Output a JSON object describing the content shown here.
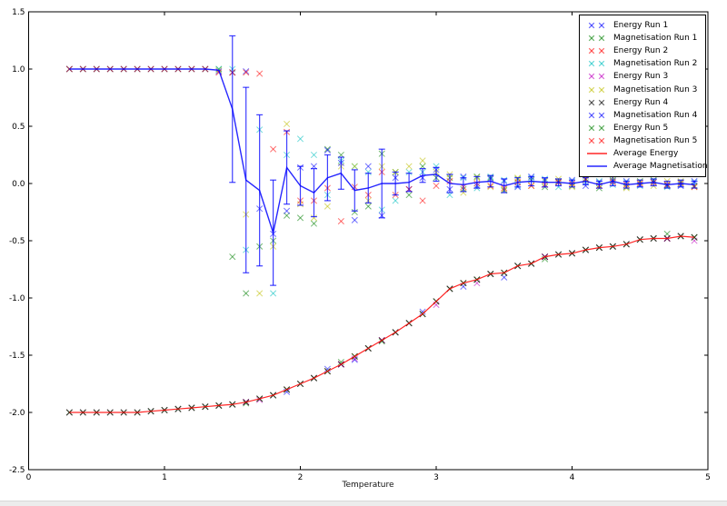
{
  "figure": {
    "background": "#ffffff",
    "axes_edge_color": "#000000",
    "errorbar_color": "#0000ff",
    "scrollbar_color": "#ececec"
  },
  "chart_data": {
    "type": "scatter",
    "title": "",
    "xlabel": "Temperature",
    "ylabel": "",
    "xlim": [
      0,
      5
    ],
    "ylim": [
      -2.5,
      1.5
    ],
    "xticks": [
      "0",
      "1",
      "2",
      "3",
      "4",
      "5"
    ],
    "yticks": [
      "1.5",
      "1.0",
      "0.5",
      "0.0",
      "-0.5",
      "-1.0",
      "-1.5",
      "-2.0",
      "-2.5"
    ],
    "grid": false,
    "legend_position": "upper right",
    "x": [
      0.3,
      0.4,
      0.5,
      0.6,
      0.7,
      0.8,
      0.9,
      1.0,
      1.1,
      1.2,
      1.3,
      1.4,
      1.5,
      1.6,
      1.7,
      1.8,
      1.9,
      2.0,
      2.1,
      2.2,
      2.3,
      2.4,
      2.5,
      2.6,
      2.7,
      2.8,
      2.9,
      3.0,
      3.1,
      3.2,
      3.3,
      3.4,
      3.5,
      3.6,
      3.7,
      3.8,
      3.9,
      4.0,
      4.1,
      4.2,
      4.3,
      4.4,
      4.5,
      4.6,
      4.7,
      4.8,
      4.9
    ],
    "series": [
      {
        "name": "Energy Run 1",
        "style": "scatter",
        "marker": "x",
        "color": "#0000ff",
        "values": [
          -2.0,
          -2.0,
          -2.0,
          -2.0,
          -2.0,
          -2.0,
          -1.99,
          -1.98,
          -1.97,
          -1.96,
          -1.95,
          -1.94,
          -1.93,
          -1.91,
          -1.88,
          -1.85,
          -1.82,
          -1.75,
          -1.7,
          -1.62,
          -1.58,
          -1.54,
          -1.44,
          -1.37,
          -1.3,
          -1.22,
          -1.12,
          -1.03,
          -0.92,
          -0.9,
          -0.84,
          -0.79,
          -0.82,
          -0.72,
          -0.7,
          -0.64,
          -0.62,
          -0.61,
          -0.58,
          -0.56,
          -0.55,
          -0.53,
          -0.49,
          -0.48,
          -0.48,
          -0.46,
          -0.47
        ]
      },
      {
        "name": "Magnetisation Run 1",
        "style": "scatter",
        "marker": "x",
        "color": "#007f00",
        "values": [
          1.0,
          1.0,
          1.0,
          1.0,
          1.0,
          1.0,
          1.0,
          1.0,
          1.0,
          1.0,
          1.0,
          1.0,
          -0.64,
          -0.96,
          -0.55,
          -0.5,
          -0.28,
          -0.3,
          -0.35,
          0.3,
          0.25,
          -0.25,
          -0.2,
          0.26,
          0.1,
          -0.1,
          0.15,
          0.05,
          0.05,
          -0.05,
          0.06,
          0.05,
          -0.06,
          0.04,
          0.03,
          -0.03,
          0.02,
          -0.02,
          0.04,
          -0.04,
          0.03,
          -0.03,
          0.02,
          0.03,
          -0.02,
          0.01,
          -0.02
        ]
      },
      {
        "name": "Energy Run 2",
        "style": "scatter",
        "marker": "x",
        "color": "#ff0000",
        "values": [
          -2.0,
          -2.0,
          -2.0,
          -2.0,
          -2.0,
          -2.0,
          -1.99,
          -1.98,
          -1.97,
          -1.96,
          -1.95,
          -1.94,
          -1.93,
          -1.91,
          -1.88,
          -1.85,
          -1.8,
          -1.75,
          -1.7,
          -1.64,
          -1.58,
          -1.51,
          -1.44,
          -1.37,
          -1.3,
          -1.22,
          -1.14,
          -1.03,
          -0.92,
          -0.87,
          -0.84,
          -0.79,
          -0.78,
          -0.72,
          -0.7,
          -0.64,
          -0.62,
          -0.61,
          -0.58,
          -0.56,
          -0.55,
          -0.53,
          -0.49,
          -0.48,
          -0.48,
          -0.46,
          -0.47
        ]
      },
      {
        "name": "Magnetisation Run 2",
        "style": "scatter",
        "marker": "x",
        "color": "#00bfbf",
        "values": [
          1.0,
          1.0,
          1.0,
          1.0,
          1.0,
          1.0,
          1.0,
          1.0,
          1.0,
          1.0,
          1.0,
          1.0,
          1.0,
          -0.58,
          0.47,
          -0.96,
          0.25,
          0.39,
          0.25,
          -0.1,
          0.2,
          0.15,
          0.1,
          -0.23,
          -0.15,
          0.1,
          0.1,
          0.15,
          -0.1,
          0.05,
          -0.04,
          0.06,
          0.03,
          -0.02,
          0.05,
          0.04,
          -0.03,
          0.02,
          0.01,
          0.02,
          -0.01,
          0.01,
          -0.02,
          0.02,
          -0.03,
          -0.01,
          0.01
        ]
      },
      {
        "name": "Energy Run 3",
        "style": "scatter",
        "marker": "x",
        "color": "#bf00bf",
        "values": [
          -2.0,
          -2.0,
          -2.0,
          -2.0,
          -2.0,
          -2.0,
          -1.99,
          -1.98,
          -1.97,
          -1.96,
          -1.95,
          -1.94,
          -1.93,
          -1.91,
          -1.89,
          -1.85,
          -1.8,
          -1.75,
          -1.7,
          -1.64,
          -1.58,
          -1.53,
          -1.44,
          -1.37,
          -1.3,
          -1.22,
          -1.14,
          -1.06,
          -0.92,
          -0.87,
          -0.87,
          -0.79,
          -0.78,
          -0.72,
          -0.7,
          -0.64,
          -0.62,
          -0.61,
          -0.58,
          -0.56,
          -0.55,
          -0.53,
          -0.49,
          -0.48,
          -0.48,
          -0.46,
          -0.5
        ]
      },
      {
        "name": "Magnetisation Run 3",
        "style": "scatter",
        "marker": "x",
        "color": "#bfbf00",
        "values": [
          1.0,
          1.0,
          1.0,
          1.0,
          1.0,
          1.0,
          1.0,
          1.0,
          1.0,
          1.0,
          1.0,
          0.99,
          0.97,
          -0.27,
          -0.96,
          -0.55,
          0.52,
          -0.18,
          -0.3,
          -0.2,
          0.15,
          0.15,
          -0.15,
          0.15,
          0.1,
          0.15,
          0.2,
          0.1,
          0.08,
          -0.08,
          0.05,
          -0.03,
          -0.05,
          0.05,
          -0.02,
          0.02,
          0.04,
          -0.03,
          0.03,
          -0.02,
          0.05,
          -0.04,
          0.01,
          -0.02,
          0.02,
          0.02,
          -0.03
        ]
      },
      {
        "name": "Energy Run 4",
        "style": "scatter",
        "marker": "x",
        "color": "#000000",
        "values": [
          -2.0,
          -2.0,
          -2.0,
          -2.0,
          -2.0,
          -2.0,
          -1.99,
          -1.98,
          -1.97,
          -1.96,
          -1.95,
          -1.94,
          -1.93,
          -1.91,
          -1.88,
          -1.85,
          -1.8,
          -1.75,
          -1.7,
          -1.64,
          -1.58,
          -1.51,
          -1.44,
          -1.37,
          -1.3,
          -1.22,
          -1.14,
          -1.03,
          -0.92,
          -0.87,
          -0.84,
          -0.79,
          -0.78,
          -0.72,
          -0.7,
          -0.64,
          -0.62,
          -0.61,
          -0.58,
          -0.56,
          -0.55,
          -0.53,
          -0.49,
          -0.48,
          -0.48,
          -0.46,
          -0.47
        ]
      },
      {
        "name": "Magnetisation Run 4",
        "style": "scatter",
        "marker": "x",
        "color": "#0000ff",
        "values": [
          1.0,
          1.0,
          1.0,
          1.0,
          1.0,
          1.0,
          1.0,
          1.0,
          1.0,
          1.0,
          1.0,
          0.98,
          0.97,
          0.98,
          -0.22,
          -0.44,
          -0.24,
          0.14,
          0.15,
          0.29,
          0.18,
          -0.32,
          0.15,
          -0.28,
          0.05,
          -0.05,
          0.05,
          0.12,
          -0.05,
          0.06,
          -0.02,
          0.04,
          0.02,
          -0.03,
          0.06,
          0.03,
          0.01,
          0.03,
          -0.02,
          0.01,
          0.02,
          0.02,
          -0.01,
          0.01,
          -0.01,
          -0.02,
          0.02
        ]
      },
      {
        "name": "Energy Run 5",
        "style": "scatter",
        "marker": "x",
        "color": "#007f00",
        "values": [
          -2.0,
          -2.0,
          -2.0,
          -2.0,
          -2.0,
          -2.0,
          -1.99,
          -1.98,
          -1.97,
          -1.96,
          -1.95,
          -1.94,
          -1.93,
          -1.92,
          -1.88,
          -1.85,
          -1.8,
          -1.75,
          -1.7,
          -1.64,
          -1.56,
          -1.51,
          -1.44,
          -1.38,
          -1.3,
          -1.22,
          -1.14,
          -1.03,
          -0.92,
          -0.87,
          -0.84,
          -0.79,
          -0.78,
          -0.72,
          -0.7,
          -0.66,
          -0.62,
          -0.61,
          -0.58,
          -0.56,
          -0.55,
          -0.53,
          -0.49,
          -0.48,
          -0.44,
          -0.46,
          -0.47
        ]
      },
      {
        "name": "Magnetisation Run 5",
        "style": "scatter",
        "marker": "x",
        "color": "#ff0000",
        "values": [
          1.0,
          1.0,
          1.0,
          1.0,
          1.0,
          1.0,
          1.0,
          1.0,
          1.0,
          1.0,
          1.0,
          0.97,
          0.97,
          0.97,
          0.96,
          0.3,
          0.45,
          -0.15,
          -0.15,
          -0.04,
          -0.33,
          -0.03,
          -0.1,
          0.1,
          -0.1,
          -0.05,
          -0.15,
          -0.02,
          0.02,
          -0.03,
          0.0,
          -0.02,
          -0.04,
          0.01,
          -0.02,
          -0.01,
          0.01,
          0.0,
          0.04,
          -0.02,
          0.01,
          -0.01,
          0.0,
          0.01,
          -0.01,
          0.0,
          -0.03
        ]
      },
      {
        "name": "Average Energy",
        "style": "line",
        "color": "#ff0000",
        "values": [
          -2.0,
          -2.0,
          -2.0,
          -2.0,
          -2.0,
          -2.0,
          -1.99,
          -1.98,
          -1.97,
          -1.96,
          -1.95,
          -1.94,
          -1.93,
          -1.91,
          -1.88,
          -1.85,
          -1.8,
          -1.75,
          -1.7,
          -1.64,
          -1.58,
          -1.51,
          -1.44,
          -1.37,
          -1.3,
          -1.22,
          -1.14,
          -1.03,
          -0.92,
          -0.87,
          -0.84,
          -0.79,
          -0.78,
          -0.72,
          -0.7,
          -0.64,
          -0.62,
          -0.61,
          -0.58,
          -0.56,
          -0.55,
          -0.53,
          -0.49,
          -0.48,
          -0.48,
          -0.46,
          -0.47
        ]
      },
      {
        "name": "Average Magnetisation",
        "style": "line",
        "color": "#0000ff",
        "values": [
          1.0,
          1.0,
          1.0,
          1.0,
          1.0,
          1.0,
          1.0,
          1.0,
          1.0,
          1.0,
          1.0,
          0.99,
          0.65,
          0.03,
          -0.06,
          -0.43,
          0.14,
          -0.02,
          -0.08,
          0.05,
          0.09,
          -0.06,
          -0.04,
          0.0,
          0.0,
          0.01,
          0.07,
          0.08,
          0.0,
          -0.01,
          0.01,
          0.02,
          -0.02,
          0.01,
          0.02,
          0.01,
          0.01,
          0.0,
          0.02,
          -0.01,
          0.02,
          -0.01,
          0.0,
          0.01,
          -0.01,
          0.0,
          -0.01
        ],
        "yerr": [
          0,
          0,
          0,
          0,
          0,
          0,
          0,
          0,
          0,
          0,
          0,
          0,
          0.64,
          0.81,
          0.66,
          0.46,
          0.32,
          0.17,
          0.21,
          0.2,
          0.14,
          0.18,
          0.13,
          0.3,
          0.1,
          0.08,
          0.06,
          0.06,
          0.08,
          0.06,
          0.05,
          0.05,
          0.06,
          0.04,
          0.04,
          0.04,
          0.03,
          0.03,
          0.03,
          0.03,
          0.04,
          0.03,
          0.03,
          0.03,
          0.03,
          0.03,
          0.03
        ]
      }
    ]
  }
}
